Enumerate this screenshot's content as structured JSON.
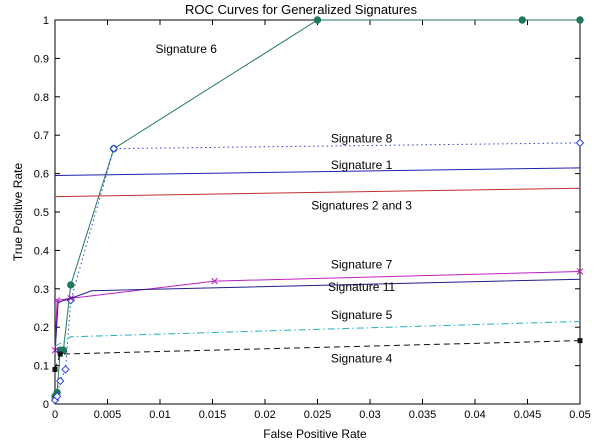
{
  "chart_data": {
    "type": "line",
    "title": "ROC Curves for Generalized Signatures",
    "xlabel": "False Positive Rate",
    "ylabel": "True Positive Rate",
    "xlim": [
      0,
      0.05
    ],
    "ylim": [
      0,
      1
    ],
    "x_ticks": [
      "0",
      "0.005",
      "0.01",
      "0.015",
      "0.02",
      "0.025",
      "0.03",
      "0.035",
      "0.04",
      "0.045",
      "0.05"
    ],
    "y_ticks": [
      "0",
      "0.1",
      "0.2",
      "0.3",
      "0.4",
      "0.5",
      "0.6",
      "0.7",
      "0.8",
      "0.9",
      "1"
    ],
    "grid": false,
    "series": [
      {
        "name": "Signature 6",
        "color": "#1f7a5a",
        "dash": "solid",
        "marker": "circle-filled",
        "x": [
          0,
          0.0002,
          0.0005,
          0.0008,
          0.0015,
          0.0056,
          0.025,
          0.0445,
          0.05
        ],
        "y": [
          0.02,
          0.03,
          0.14,
          0.14,
          0.31,
          0.665,
          1.0,
          1.0,
          1.0
        ]
      },
      {
        "name": "Signature 8",
        "color": "#2b3fd6",
        "dash": "dotted",
        "marker": "diamond-open",
        "x": [
          0,
          0.0002,
          0.0005,
          0.001,
          0.0015,
          0.0056,
          0.05
        ],
        "y": [
          0.01,
          0.02,
          0.06,
          0.09,
          0.27,
          0.665,
          0.68
        ]
      },
      {
        "name": "Signature 1",
        "color": "#2020b0",
        "dash": "solid",
        "marker": "none",
        "x": [
          0,
          0.05
        ],
        "y": [
          0.595,
          0.615
        ]
      },
      {
        "name": "Signatures 2 and 3",
        "color": "#c03030",
        "dash": "solid",
        "marker": "none",
        "x": [
          0,
          0.05
        ],
        "y": [
          0.54,
          0.562
        ]
      },
      {
        "name": "Signature 7",
        "color": "#c020c0",
        "dash": "solid",
        "marker": "x",
        "x": [
          0,
          0.0002,
          0.0015,
          0.0152,
          0.05
        ],
        "y": [
          0.14,
          0.27,
          0.275,
          0.32,
          0.345
        ]
      },
      {
        "name": "Signature 11",
        "color": "#20208a",
        "dash": "solid",
        "marker": "none",
        "x": [
          0,
          0.0003,
          0.0015,
          0.0035,
          0.05
        ],
        "y": [
          0.13,
          0.265,
          0.275,
          0.295,
          0.325
        ]
      },
      {
        "name": "Signature 5",
        "color": "#20b0c0",
        "dash": "dashdot",
        "marker": "none",
        "x": [
          0,
          0.0015,
          0.05
        ],
        "y": [
          0.15,
          0.175,
          0.215
        ]
      },
      {
        "name": "Signature 4",
        "color": "#111111",
        "dash": "dashed",
        "marker": "square-filled",
        "x": [
          0,
          0.0005,
          0.05
        ],
        "y": [
          0.09,
          0.13,
          0.165
        ]
      }
    ],
    "annotations": [
      {
        "text": "Signature 6",
        "x": 0.0125,
        "y": 0.925
      },
      {
        "text": "Signature 8",
        "x": 0.0292,
        "y": 0.692
      },
      {
        "text": "Signature 1",
        "x": 0.0292,
        "y": 0.622
      },
      {
        "text": "Signatures 2 and 3",
        "x": 0.0292,
        "y": 0.517
      },
      {
        "text": "Signature 7",
        "x": 0.0292,
        "y": 0.363
      },
      {
        "text": "Signature 11",
        "x": 0.0292,
        "y": 0.305
      },
      {
        "text": "Signature 5",
        "x": 0.0292,
        "y": 0.232
      },
      {
        "text": "Signature 4",
        "x": 0.0292,
        "y": 0.118
      }
    ]
  }
}
